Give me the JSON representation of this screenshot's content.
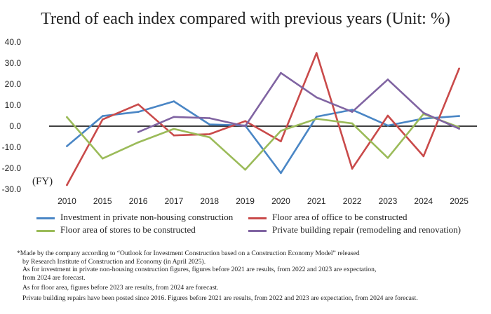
{
  "chart_data": {
    "type": "line",
    "title": "Trend of each index compared with previous years (Unit: %)",
    "ylabel": "(FY)",
    "x": [
      "2010",
      "2015",
      "2016",
      "2017",
      "2018",
      "2019",
      "2020",
      "2021",
      "2022",
      "2023",
      "2024",
      "2025"
    ],
    "ylim": [
      -30,
      40
    ],
    "yticks": [
      "40.0",
      "30.0",
      "20.0",
      "10.0",
      "0.0",
      "-10.0",
      "-20.0",
      "-30.0"
    ],
    "grid": false,
    "legend_position": "bottom",
    "series": [
      {
        "name": "Investment in private non-housing construction",
        "color": "#4a86c5",
        "values": [
          -9.5,
          4.8,
          6.8,
          11.8,
          0.8,
          0.3,
          -22.3,
          4.5,
          7.8,
          0.3,
          3.6,
          4.8
        ]
      },
      {
        "name": "Floor area of office to be constructed",
        "color": "#c94a4a",
        "values": [
          -28.0,
          3.2,
          10.4,
          -4.4,
          -3.8,
          2.4,
          -7.2,
          34.8,
          -20.2,
          5.0,
          -14.3,
          27.4
        ]
      },
      {
        "name": "Floor area of stores to be constructed",
        "color": "#9bbb59",
        "values": [
          4.3,
          -15.4,
          -7.7,
          -1.3,
          -5.3,
          -20.7,
          -2.2,
          3.5,
          1.3,
          -15.1,
          5.8,
          -0.5
        ]
      },
      {
        "name": "Private building repair (remodeling and renovation)",
        "color": "#8064a2",
        "values": [
          null,
          null,
          -2.8,
          4.4,
          3.8,
          0.0,
          25.3,
          13.7,
          6.8,
          22.2,
          6.3,
          -1.2
        ]
      }
    ]
  },
  "notes": [
    "*Made by the company according to “Outlook for Investment Construction based on a Construction Economy Model” released",
    "by Research Institute of Construction and Economy (in April 2025).",
    "As for investment in private non-housing construction figures, figures before 2021 are results, from 2022 and 2023 are expectation,",
    "from 2024 are forecast.",
    "As for floor area, figures before 2023 are results, from 2024 are forecast.",
    "Private building repairs have been posted since 2016. Figures before 2021 are results, from 2022 and 2023 are expectation, from 2024 are forecast."
  ]
}
